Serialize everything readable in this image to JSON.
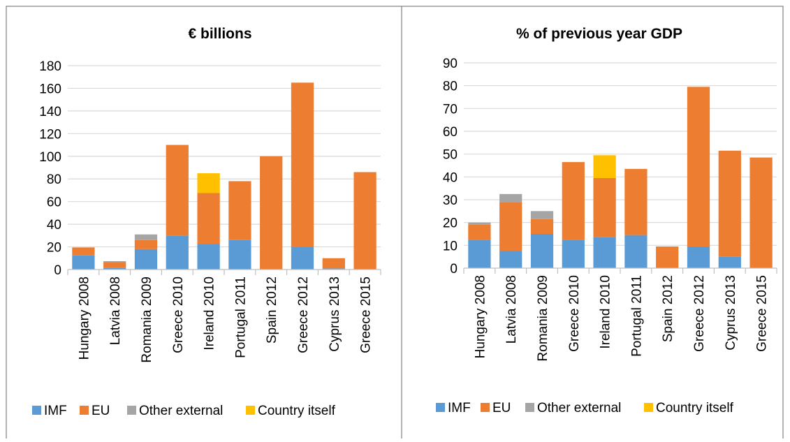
{
  "colors": {
    "IMF": "#5b9bd5",
    "EU": "#ed7d31",
    "Other external": "#a5a5a5",
    "Country itself": "#ffc000",
    "grid": "#d9d9d9",
    "axis": "#bfbfbf",
    "frame": "#7f7f7f"
  },
  "chart_data": [
    {
      "type": "bar",
      "stacked": true,
      "title": "€ billions",
      "categories": [
        "Hungary 2008",
        "Latvia 2008",
        "Romania 2009",
        "Greece 2010",
        "Ireland 2010",
        "Portugal 2011",
        "Spain 2012",
        "Greece 2012",
        "Cyprus 2013",
        "Greece 2015"
      ],
      "ylim": [
        0,
        180
      ],
      "yticks": [
        "0",
        "20",
        "40",
        "60",
        "80",
        "100",
        "120",
        "140",
        "160",
        "180"
      ],
      "grid": true,
      "legend": "bottom",
      "series": [
        {
          "name": "IMF",
          "values": [
            12.5,
            1.7,
            18,
            30,
            22.5,
            26,
            0,
            20,
            1,
            0
          ]
        },
        {
          "name": "EU",
          "values": [
            7,
            5,
            8,
            80,
            45,
            52,
            100,
            145,
            9,
            86
          ]
        },
        {
          "name": "Other external",
          "values": [
            0,
            0.7,
            5,
            0,
            0,
            0,
            0,
            0,
            0,
            0
          ]
        },
        {
          "name": "Country itself",
          "values": [
            0,
            0,
            0,
            0,
            17.5,
            0,
            0,
            0,
            0,
            0
          ]
        }
      ]
    },
    {
      "type": "bar",
      "stacked": true,
      "title": "% of previous year GDP",
      "categories": [
        "Hungary 2008",
        "Latvia 2008",
        "Romania 2009",
        "Greece 2010",
        "Ireland 2010",
        "Portugal 2011",
        "Spain 2012",
        "Greece 2012",
        "Cyprus 2013",
        "Greece 2015"
      ],
      "ylim": [
        0,
        90
      ],
      "yticks": [
        "0",
        "10",
        "20",
        "30",
        "40",
        "50",
        "60",
        "70",
        "80",
        "90"
      ],
      "grid": true,
      "legend": "bottom",
      "series": [
        {
          "name": "IMF",
          "values": [
            12.5,
            7.5,
            15,
            12.5,
            13.5,
            14.5,
            0,
            9.5,
            5,
            0
          ]
        },
        {
          "name": "EU",
          "values": [
            6.5,
            21.5,
            6.5,
            34,
            26,
            29,
            9.5,
            70,
            46.5,
            48.5
          ]
        },
        {
          "name": "Other external",
          "values": [
            1,
            3.5,
            3.5,
            0,
            0,
            0,
            0,
            0,
            0,
            0
          ]
        },
        {
          "name": "Country itself",
          "values": [
            0,
            0,
            0,
            0,
            10,
            0,
            0,
            0,
            0,
            0
          ]
        }
      ]
    }
  ],
  "legend": {
    "items": [
      "IMF",
      "EU",
      "Other external",
      "Country itself"
    ]
  }
}
